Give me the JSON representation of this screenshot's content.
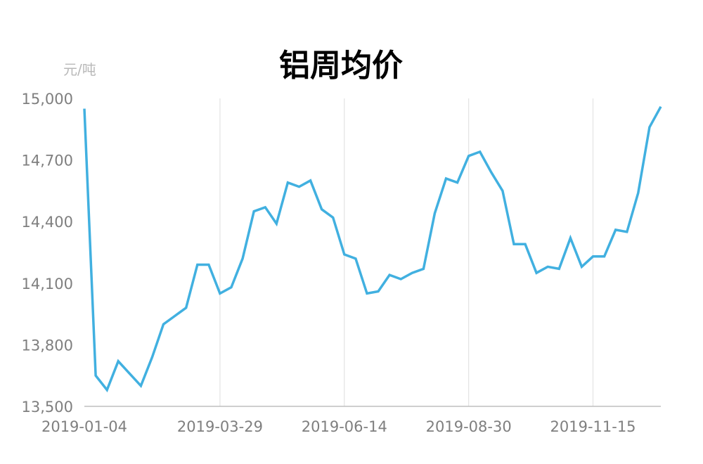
{
  "chart_data": {
    "type": "line",
    "title": "铝周均价",
    "unit_label": "元/吨",
    "ylim": [
      13500,
      15000
    ],
    "y_ticks": [
      "13,500",
      "13,800",
      "14,100",
      "14,400",
      "14,700",
      "15,000"
    ],
    "y_tick_values": [
      13500,
      13800,
      14100,
      14400,
      14700,
      15000
    ],
    "x_tick_labels": [
      "2019-01-04",
      "2019-03-29",
      "2019-06-14",
      "2019-08-30",
      "2019-11-15"
    ],
    "x_tick_dates": [
      "2019-01-04",
      "2019-03-29",
      "2019-06-14",
      "2019-08-30",
      "2019-11-15"
    ],
    "x_range": [
      "2019-01-04",
      "2019-12-27"
    ],
    "grid": "vertical",
    "series": [
      {
        "color": "#41b0e0",
        "x": [
          "2019-01-04",
          "2019-01-11",
          "2019-01-18",
          "2019-01-25",
          "2019-02-01",
          "2019-02-08",
          "2019-02-15",
          "2019-02-22",
          "2019-03-01",
          "2019-03-08",
          "2019-03-15",
          "2019-03-22",
          "2019-03-29",
          "2019-04-05",
          "2019-04-12",
          "2019-04-19",
          "2019-04-26",
          "2019-05-03",
          "2019-05-10",
          "2019-05-17",
          "2019-05-24",
          "2019-05-31",
          "2019-06-07",
          "2019-06-14",
          "2019-06-21",
          "2019-06-28",
          "2019-07-05",
          "2019-07-12",
          "2019-07-19",
          "2019-07-26",
          "2019-08-02",
          "2019-08-09",
          "2019-08-16",
          "2019-08-23",
          "2019-08-30",
          "2019-09-06",
          "2019-09-13",
          "2019-09-20",
          "2019-09-27",
          "2019-10-04",
          "2019-10-11",
          "2019-10-18",
          "2019-10-25",
          "2019-11-01",
          "2019-11-08",
          "2019-11-15",
          "2019-11-22",
          "2019-11-29",
          "2019-12-06",
          "2019-12-13",
          "2019-12-20",
          "2019-12-27"
        ],
        "values": [
          14950,
          13650,
          13580,
          13720,
          13660,
          13600,
          13740,
          13900,
          13940,
          13980,
          14190,
          14190,
          14050,
          14080,
          14220,
          14450,
          14470,
          14390,
          14590,
          14570,
          14600,
          14460,
          14420,
          14240,
          14220,
          14050,
          14060,
          14140,
          14120,
          14150,
          14170,
          14440,
          14610,
          14590,
          14720,
          14740,
          14640,
          14550,
          14290,
          14290,
          14150,
          14180,
          14170,
          14320,
          14180,
          14230,
          14230,
          14360,
          14350,
          14540,
          14860,
          14960
        ]
      }
    ]
  }
}
